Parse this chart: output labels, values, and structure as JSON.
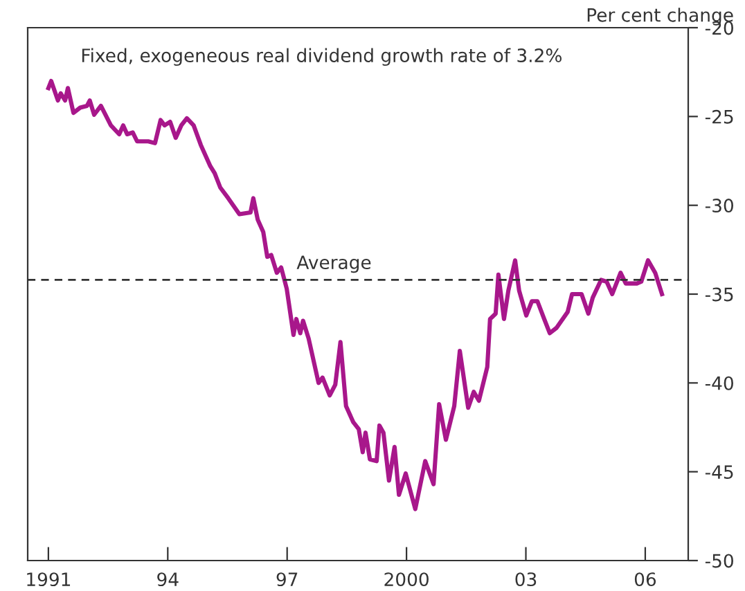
{
  "chart_data": {
    "type": "line",
    "ylabel": "Per cent change",
    "annotations": [
      "Fixed, exogeneous real dividend growth rate of 3.2%"
    ],
    "series": [
      {
        "color": "#a8178b",
        "x": [
          1991.0,
          1991.07,
          1991.24,
          1991.31,
          1991.42,
          1991.49,
          1991.63,
          1991.8,
          1991.97,
          1992.04,
          1992.15,
          1992.32,
          1992.57,
          1992.78,
          1992.88,
          1992.98,
          1993.12,
          1993.23,
          1993.51,
          1993.68,
          1993.82,
          1993.92,
          1994.06,
          1994.2,
          1994.34,
          1994.48,
          1994.65,
          1994.83,
          1995.07,
          1995.18,
          1995.32,
          1995.52,
          1995.8,
          1996.08,
          1996.15,
          1996.26,
          1996.4,
          1996.5,
          1996.6,
          1996.74,
          1996.85,
          1996.99,
          1997.16,
          1997.23,
          1997.33,
          1997.4,
          1997.54,
          1997.79,
          1997.89,
          1998.07,
          1998.21,
          1998.34,
          1998.48,
          1998.66,
          1998.8,
          1998.9,
          1998.97,
          1999.08,
          1999.25,
          1999.32,
          1999.42,
          1999.56,
          1999.7,
          1999.81,
          1999.98,
          2000.22,
          2000.47,
          2000.68,
          2000.82,
          2000.99,
          2001.2,
          2001.34,
          2001.55,
          2001.69,
          2001.82,
          2002.03,
          2002.1,
          2002.24,
          2002.31,
          2002.45,
          2002.56,
          2002.73,
          2002.83,
          2003.01,
          2003.15,
          2003.29,
          2003.46,
          2003.6,
          2003.77,
          2004.05,
          2004.16,
          2004.4,
          2004.57,
          2004.68,
          2004.89,
          2005.03,
          2005.17,
          2005.38,
          2005.51,
          2005.79,
          2005.9,
          2006.07,
          2006.25,
          2006.42
        ],
        "values": [
          -23.4,
          -23.0,
          -24.1,
          -23.7,
          -24.1,
          -23.4,
          -24.8,
          -24.5,
          -24.4,
          -24.1,
          -24.9,
          -24.4,
          -25.5,
          -26.0,
          -25.5,
          -26.0,
          -25.9,
          -26.4,
          -26.4,
          -26.5,
          -25.2,
          -25.5,
          -25.3,
          -26.2,
          -25.5,
          -25.1,
          -25.5,
          -26.6,
          -27.8,
          -28.2,
          -29.0,
          -29.6,
          -30.5,
          -30.4,
          -29.6,
          -30.8,
          -31.5,
          -32.9,
          -32.8,
          -33.8,
          -33.5,
          -34.7,
          -37.3,
          -36.4,
          -37.2,
          -36.5,
          -37.5,
          -40.0,
          -39.7,
          -40.7,
          -40.1,
          -37.7,
          -41.3,
          -42.2,
          -42.6,
          -43.9,
          -42.8,
          -44.3,
          -44.4,
          -42.4,
          -42.8,
          -45.5,
          -43.6,
          -46.3,
          -45.1,
          -47.1,
          -44.4,
          -45.7,
          -41.2,
          -43.2,
          -41.3,
          -38.2,
          -41.4,
          -40.5,
          -41.0,
          -39.1,
          -36.4,
          -36.1,
          -33.9,
          -36.4,
          -34.8,
          -33.1,
          -34.8,
          -36.2,
          -35.4,
          -35.4,
          -36.4,
          -37.2,
          -36.9,
          -36.0,
          -35.0,
          -35.0,
          -36.1,
          -35.2,
          -34.2,
          -34.3,
          -35.0,
          -33.8,
          -34.4,
          -34.4,
          -34.3,
          -33.1,
          -33.8,
          -35.0
        ]
      }
    ],
    "ref_lines": [
      {
        "axis": "y",
        "value": -34.2,
        "label": "Average",
        "color": "#333333",
        "line_style": "dashed"
      }
    ],
    "xlim": [
      1990.48,
      2007.08
    ],
    "xticks": [
      {
        "value": 1991,
        "label": "1991"
      },
      {
        "value": 1994,
        "label": "94"
      },
      {
        "value": 1997,
        "label": "97"
      },
      {
        "value": 2000,
        "label": "2000"
      },
      {
        "value": 2003,
        "label": "03"
      },
      {
        "value": 2006,
        "label": "06"
      }
    ],
    "ylim": [
      -50,
      -20
    ],
    "yticks": [
      -50,
      -45,
      -40,
      -35,
      -30,
      -25,
      -20
    ],
    "grid": false,
    "legend": false,
    "marker": "none",
    "line_style": "solid"
  }
}
